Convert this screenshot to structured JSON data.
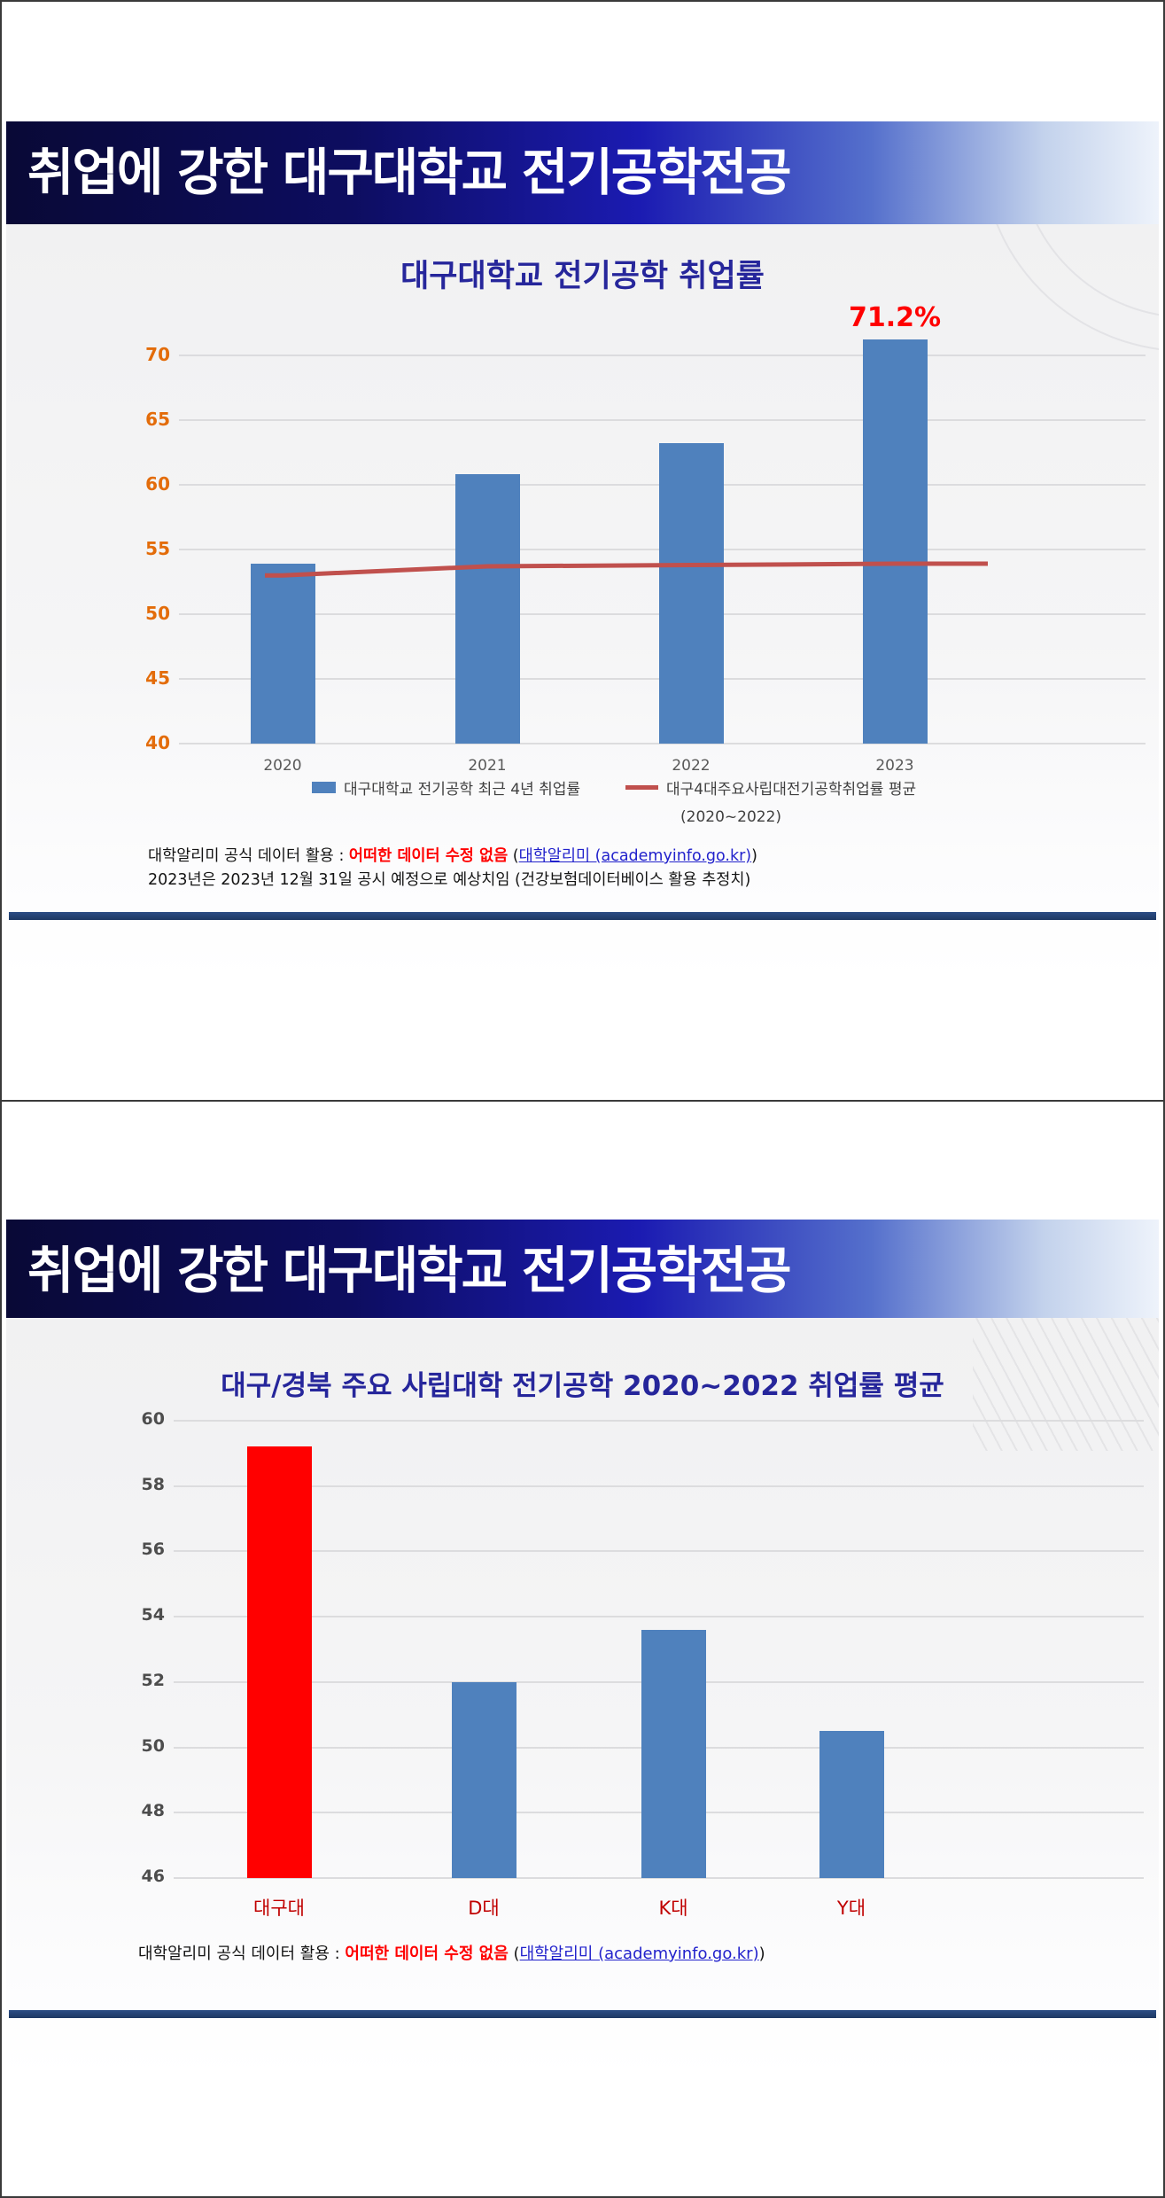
{
  "slide1": {
    "banner_title": "취업에 강한 대구대학교 전기공학전공",
    "chart_title": "대구대학교 전기공학 취업률",
    "legend": {
      "bar_label": "대구대학교 전기공학 최근 4년 취업률",
      "line_label": "대구4대주요사립대전기공학취업률 평균",
      "line_sublabel": "(2020~2022)"
    },
    "footnote": {
      "prefix": "대학알리미 공식 데이터 활용 : ",
      "highlight": "어떠한 데이터 수정 없음",
      "link_open": " (",
      "link": "대학알리미 (academyinfo.go.kr)",
      "link_close": ")",
      "line2": "2023년은 2023년 12월 31일 공시 예정으로 예상치임 (건강보험데이터베이스 활용 추정치)"
    }
  },
  "slide2": {
    "banner_title": "취업에 강한 대구대학교 전기공학전공",
    "chart_title": "대구/경북 주요 사립대학  전기공학 2020~2022 취업률 평균",
    "footnote": {
      "prefix": "대학알리미 공식 데이터 활용 : ",
      "highlight": "어떠한 데이터 수정 없음",
      "link_open": " (",
      "link": "대학알리미 (academyinfo.go.kr)",
      "link_close": ")"
    }
  },
  "colors": {
    "bar_blue": "#4F81BD",
    "line_red": "#C0504D",
    "highlight_red": "#FF0000",
    "axis_orange": "#E36C0A",
    "axis_gray": "#4D4D4D",
    "category_red": "#C00000",
    "title_navy": "#26269B",
    "banner_navy": "#0D0D60"
  },
  "chart_data": [
    {
      "type": "bar",
      "title": "대구대학교 전기공학 취업률",
      "categories": [
        "2020",
        "2021",
        "2022",
        "2023"
      ],
      "series": [
        {
          "name": "대구대학교 전기공학 최근 4년 취업률",
          "type": "bar",
          "color": "#4F81BD",
          "values": [
            53.9,
            60.8,
            63.2,
            71.2
          ]
        },
        {
          "name": "대구4대주요사립대전기공학취업률 평균 (2020~2022)",
          "type": "line",
          "color": "#C0504D",
          "values": [
            53.0,
            53.7,
            53.8,
            53.9
          ]
        }
      ],
      "ylim": [
        40,
        70
      ],
      "ytick_step": 5,
      "grid": true,
      "legend_position": "bottom",
      "tick_color": "#E36C0A",
      "xtick_color": "#595959",
      "data_labels": [
        {
          "series": 0,
          "index": 3,
          "text": "71.2%",
          "color": "#FF0000"
        }
      ]
    },
    {
      "type": "bar",
      "title": "대구/경북 주요 사립대학  전기공학 2020~2022 취업률 평균",
      "categories": [
        "대구대",
        "D대",
        "K대",
        "Y대"
      ],
      "series": [
        {
          "name": "전기공학 2020~2022 취업률 평균",
          "type": "bar",
          "colors": [
            "#FF0000",
            "#4F81BD",
            "#4F81BD",
            "#4F81BD"
          ],
          "values": [
            59.2,
            52.0,
            53.6,
            50.5
          ]
        }
      ],
      "ylim": [
        46,
        60
      ],
      "ytick_step": 2,
      "grid": true,
      "legend_position": "none",
      "tick_color": "#4D4D4D",
      "xtick_color": "#C00000",
      "data_labels": []
    }
  ]
}
